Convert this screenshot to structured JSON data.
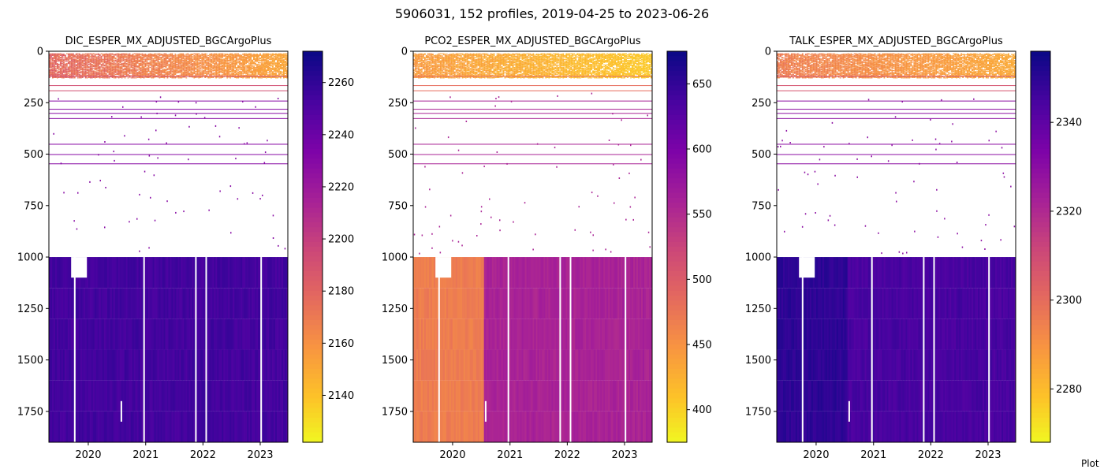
{
  "figure": {
    "suptitle": "5906031, 152 profiles, 2019-04-25 to 2023-06-26",
    "footer": "Plot"
  },
  "chart_data": [
    {
      "type": "heatmap",
      "title": "DIC_ESPER_MX_ADJUSTED_BGCArgoPlus",
      "xlabel": "",
      "ylabel": "",
      "x_ticks": [
        "2020",
        "2021",
        "2022",
        "2023"
      ],
      "x_range": [
        "2019-04-25",
        "2023-06-26"
      ],
      "y_ticks": [
        0,
        250,
        500,
        750,
        1000,
        1250,
        1500,
        1750
      ],
      "ylim": [
        1900,
        0
      ],
      "y_inverted": true,
      "colormap": "plasma_r",
      "colorbar": {
        "range": [
          2122,
          2272
        ],
        "ticks": [
          2140,
          2160,
          2180,
          2200,
          2220,
          2240,
          2260
        ]
      },
      "profile_count": 152,
      "shallow_values": {
        "range": [
          2140,
          2190
        ],
        "depth_to": 130
      },
      "mid_values": {
        "depth_range": [
          130,
          1000
        ],
        "value": 2230
      },
      "deep_values": {
        "depth_range": [
          1000,
          1900
        ],
        "value": 2255
      }
    },
    {
      "type": "heatmap",
      "title": "PCO2_ESPER_MX_ADJUSTED_BGCArgoPlus",
      "xlabel": "",
      "ylabel": "",
      "x_ticks": [
        "2020",
        "2021",
        "2022",
        "2023"
      ],
      "x_range": [
        "2019-04-25",
        "2023-06-26"
      ],
      "y_ticks": [
        0,
        250,
        500,
        750,
        1000,
        1250,
        1500,
        1750
      ],
      "ylim": [
        1900,
        0
      ],
      "y_inverted": true,
      "colormap": "plasma_r",
      "colorbar": {
        "range": [
          375,
          675
        ],
        "ticks": [
          400,
          450,
          500,
          550,
          600,
          650
        ]
      },
      "profile_count": 152,
      "shallow_values": {
        "range": [
          390,
          460
        ],
        "depth_to": 130
      },
      "mid_values": {
        "depth_range": [
          130,
          1000
        ],
        "value": 560
      },
      "deep_values": {
        "depth_range": [
          1000,
          1900
        ],
        "value_early": 470,
        "value_late": 560
      }
    },
    {
      "type": "heatmap",
      "title": "TALK_ESPER_MX_ADJUSTED_BGCArgoPlus",
      "xlabel": "",
      "ylabel": "",
      "x_ticks": [
        "2020",
        "2021",
        "2022",
        "2023"
      ],
      "x_range": [
        "2019-04-25",
        "2023-06-26"
      ],
      "y_ticks": [
        0,
        250,
        500,
        750,
        1000,
        1250,
        1500,
        1750
      ],
      "ylim": [
        1900,
        0
      ],
      "y_inverted": true,
      "colormap": "plasma_r",
      "colorbar": {
        "range": [
          2268,
          2356
        ],
        "ticks": [
          2280,
          2300,
          2320,
          2340
        ]
      },
      "profile_count": 152,
      "shallow_values": {
        "range": [
          2280,
          2300
        ],
        "depth_to": 130
      },
      "mid_values": {
        "depth_range": [
          130,
          1000
        ],
        "value": 2330
      },
      "deep_values": {
        "depth_range": [
          1000,
          1900
        ],
        "value_early": 2350,
        "value_late": 2345
      }
    }
  ]
}
